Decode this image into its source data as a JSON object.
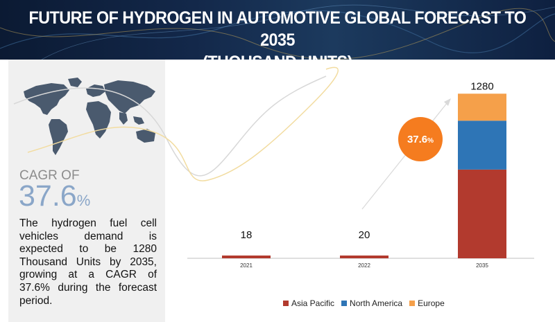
{
  "header": {
    "title_line1": "FUTURE OF HYDROGEN IN AUTOMOTIVE GLOBAL FORECAST TO 2035",
    "title_line2": "(THOUSAND UNITS)"
  },
  "left_panel": {
    "cagr_label": "CAGR OF",
    "cagr_value": "37.6",
    "cagr_unit": "%",
    "description": "The hydrogen fuel cell vehicles demand is expected to be 1280 Thousand Units by 2035, growing at a CAGR of 37.6% during the forecast period."
  },
  "colors": {
    "asia_pacific": "#b23a2e",
    "north_america": "#2e75b6",
    "europe": "#f5a04a",
    "cagr_bubble": "#f57c1f"
  },
  "chart_data": {
    "type": "bar",
    "stacked": true,
    "categories": [
      "2021",
      "2022",
      "2035"
    ],
    "series": [
      {
        "name": "Asia Pacific",
        "values": [
          18,
          20,
          690
        ]
      },
      {
        "name": "North America",
        "values": [
          0,
          0,
          380
        ]
      },
      {
        "name": "Europe",
        "values": [
          0,
          0,
          210
        ]
      }
    ],
    "totals": [
      "18",
      "20",
      "1280"
    ],
    "annotation": {
      "label": "37.6",
      "unit": "%"
    },
    "ylim": [
      0,
      1400
    ],
    "legend_position": "bottom"
  }
}
